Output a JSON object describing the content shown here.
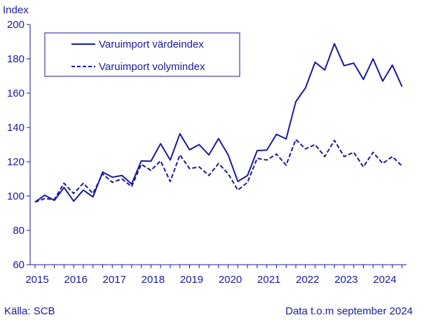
{
  "chart_data": {
    "type": "line",
    "ylabel": "Index",
    "ylim": [
      60,
      200
    ],
    "yticks": [
      60,
      80,
      100,
      120,
      140,
      160,
      180,
      200
    ],
    "year_labels": [
      "2015",
      "2016",
      "2017",
      "2018",
      "2019",
      "2020",
      "2021",
      "2022",
      "2023",
      "2024"
    ],
    "x_start": "2015 Q1",
    "x_end": "2024 Q3",
    "grid": false,
    "legend_position": "top-left",
    "x": [
      "2015 Q1",
      "2015 Q2",
      "2015 Q3",
      "2015 Q4",
      "2016 Q1",
      "2016 Q2",
      "2016 Q3",
      "2016 Q4",
      "2017 Q1",
      "2017 Q2",
      "2017 Q3",
      "2017 Q4",
      "2018 Q1",
      "2018 Q2",
      "2018 Q3",
      "2018 Q4",
      "2019 Q1",
      "2019 Q2",
      "2019 Q3",
      "2019 Q4",
      "2020 Q1",
      "2020 Q2",
      "2020 Q3",
      "2020 Q4",
      "2021 Q1",
      "2021 Q2",
      "2021 Q3",
      "2021 Q4",
      "2022 Q1",
      "2022 Q2",
      "2022 Q3",
      "2022 Q4",
      "2023 Q1",
      "2023 Q2",
      "2023 Q3",
      "2023 Q4",
      "2024 Q1",
      "2024 Q2",
      "2024 Q3"
    ],
    "series": [
      {
        "name": "Varuimport värdeindex",
        "style": "solid",
        "color": "#1a1a9c",
        "values": [
          96.5,
          100.5,
          97.5,
          105,
          97,
          103.5,
          99.5,
          114,
          111,
          112,
          107,
          120.5,
          120.3,
          130.5,
          121,
          136.3,
          127,
          130,
          124,
          133.5,
          124,
          108.5,
          112,
          126.5,
          126.8,
          136,
          133.3,
          155,
          163,
          178,
          173.5,
          188.8,
          176,
          177.5,
          168,
          180,
          167,
          176.3,
          163.8
        ]
      },
      {
        "name": "Varuimport volymindex",
        "style": "dashed",
        "color": "#1a1a9c",
        "values": [
          96.5,
          98.5,
          98,
          107.5,
          101.5,
          107.5,
          101.5,
          113,
          108,
          110,
          105.5,
          118.5,
          115,
          120.5,
          108.5,
          124,
          116,
          117,
          112,
          119,
          113,
          103.5,
          108,
          122,
          121,
          124.5,
          118,
          133,
          127.5,
          130,
          123,
          132.5,
          123,
          125.5,
          117,
          125.5,
          119,
          123,
          117.5
        ]
      }
    ]
  },
  "footer": {
    "source": "Källa: SCB",
    "data_note": "Data t.o.m september 2024"
  },
  "colors": {
    "ink": "#1a1a9c",
    "background": "#ffffff"
  }
}
